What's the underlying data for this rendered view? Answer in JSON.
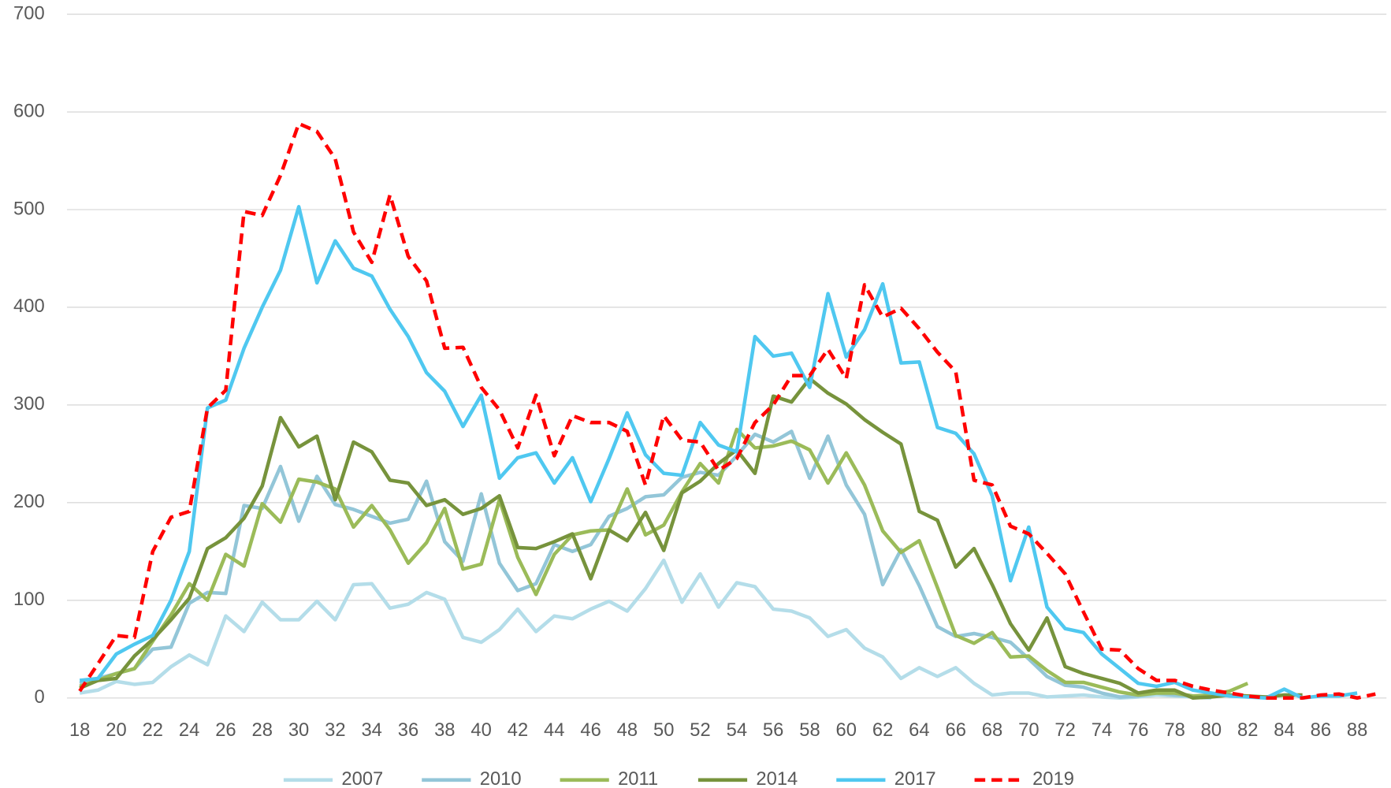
{
  "chart_data": {
    "type": "line",
    "x": [
      18,
      19,
      20,
      21,
      22,
      23,
      24,
      25,
      26,
      27,
      28,
      29,
      30,
      31,
      32,
      33,
      34,
      35,
      36,
      37,
      38,
      39,
      40,
      41,
      42,
      43,
      44,
      45,
      46,
      47,
      48,
      49,
      50,
      51,
      52,
      53,
      54,
      55,
      56,
      57,
      58,
      59,
      60,
      61,
      62,
      63,
      64,
      65,
      66,
      67,
      68,
      69,
      70,
      71,
      72,
      73,
      74,
      75,
      76,
      77,
      78,
      79,
      80,
      81,
      82,
      83,
      84,
      85,
      86,
      87,
      88,
      89
    ],
    "xlim": [
      17.3,
      89.6
    ],
    "xticks": [
      18,
      20,
      22,
      24,
      26,
      28,
      30,
      32,
      34,
      36,
      38,
      40,
      42,
      44,
      46,
      48,
      50,
      52,
      54,
      56,
      58,
      60,
      62,
      64,
      66,
      68,
      70,
      72,
      74,
      76,
      78,
      80,
      82,
      84,
      86,
      88
    ],
    "ylim": [
      0,
      700
    ],
    "yticks": [
      0,
      100,
      200,
      300,
      400,
      500,
      600,
      700
    ],
    "grid": true,
    "legend": "bottom",
    "series": [
      {
        "name": "2007",
        "color": "#b4dde9",
        "style": "solid",
        "values": [
          5,
          8,
          17,
          14,
          16,
          32,
          44,
          34,
          84,
          68,
          98,
          80,
          80,
          99,
          80,
          116,
          117,
          92,
          96,
          108,
          101,
          62,
          57,
          70,
          91,
          68,
          84,
          81,
          91,
          99,
          89,
          112,
          141,
          98,
          127,
          93,
          118,
          114,
          91,
          89,
          82,
          63,
          70,
          51,
          42,
          20,
          31,
          22,
          31,
          15,
          3,
          5,
          5,
          1,
          2,
          3,
          1,
          0,
          1,
          3,
          2,
          1,
          0,
          null,
          null,
          null,
          null,
          null,
          null,
          null,
          null,
          null
        ]
      },
      {
        "name": "2010",
        "color": "#93c6d8",
        "style": "solid",
        "values": [
          15,
          20,
          25,
          30,
          50,
          52,
          97,
          108,
          107,
          197,
          194,
          237,
          181,
          227,
          198,
          193,
          186,
          179,
          183,
          222,
          160,
          140,
          209,
          138,
          110,
          117,
          157,
          150,
          157,
          186,
          194,
          206,
          208,
          226,
          231,
          228,
          248,
          270,
          262,
          273,
          225,
          268,
          218,
          188,
          116,
          152,
          115,
          73,
          63,
          66,
          62,
          57,
          40,
          22,
          13,
          11,
          5,
          1,
          2,
          5,
          3,
          2,
          1,
          null,
          null,
          null,
          null,
          null,
          null,
          null,
          null,
          null
        ]
      },
      {
        "name": "2011",
        "color": "#9bbb59",
        "style": "solid",
        "values": [
          12,
          18,
          25,
          30,
          58,
          85,
          117,
          100,
          147,
          135,
          199,
          180,
          224,
          221,
          214,
          175,
          197,
          172,
          138,
          159,
          194,
          132,
          137,
          203,
          144,
          106,
          147,
          167,
          171,
          172,
          214,
          167,
          177,
          211,
          240,
          220,
          275,
          256,
          258,
          263,
          254,
          220,
          251,
          218,
          171,
          149,
          161,
          113,
          64,
          56,
          67,
          42,
          43,
          28,
          16,
          16,
          11,
          6,
          3,
          5,
          5,
          2,
          3,
          7,
          15,
          null,
          null,
          null,
          null,
          null,
          null,
          null
        ]
      },
      {
        "name": "2014",
        "color": "#77933c",
        "style": "solid",
        "values": [
          10,
          18,
          20,
          43,
          60,
          80,
          102,
          153,
          164,
          184,
          217,
          287,
          257,
          268,
          203,
          262,
          252,
          223,
          220,
          197,
          203,
          188,
          194,
          207,
          154,
          153,
          160,
          168,
          122,
          172,
          161,
          190,
          151,
          210,
          222,
          240,
          254,
          230,
          309,
          303,
          327,
          312,
          301,
          285,
          272,
          260,
          191,
          182,
          134,
          153,
          116,
          76,
          49,
          82,
          32,
          25,
          20,
          15,
          5,
          8,
          8,
          0,
          1,
          3,
          2,
          1,
          3,
          3,
          null,
          null,
          null,
          null
        ]
      },
      {
        "name": "2017",
        "color": "#4fc8f0",
        "style": "solid",
        "values": [
          18,
          20,
          45,
          55,
          64,
          100,
          150,
          297,
          305,
          358,
          400,
          438,
          503,
          425,
          468,
          440,
          432,
          398,
          370,
          333,
          314,
          278,
          310,
          225,
          246,
          251,
          220,
          246,
          201,
          245,
          292,
          249,
          230,
          228,
          282,
          259,
          252,
          370,
          350,
          353,
          318,
          414,
          349,
          377,
          424,
          343,
          344,
          277,
          271,
          250,
          207,
          120,
          175,
          93,
          71,
          67,
          45,
          30,
          15,
          12,
          16,
          8,
          5,
          2,
          1,
          0,
          9,
          0,
          2,
          2,
          5,
          null
        ]
      },
      {
        "name": "2019",
        "color": "#ff0000",
        "style": "dashed",
        "values": [
          7,
          35,
          64,
          62,
          150,
          185,
          191,
          297,
          315,
          498,
          494,
          535,
          588,
          580,
          552,
          477,
          446,
          515,
          452,
          427,
          358,
          359,
          318,
          295,
          256,
          310,
          248,
          289,
          282,
          282,
          273,
          218,
          289,
          264,
          262,
          233,
          245,
          282,
          300,
          330,
          330,
          357,
          327,
          423,
          390,
          399,
          378,
          354,
          334,
          223,
          218,
          176,
          168,
          148,
          127,
          88,
          50,
          49,
          30,
          18,
          18,
          12,
          8,
          5,
          2,
          0,
          0,
          0,
          3,
          4,
          0,
          4
        ]
      }
    ]
  }
}
